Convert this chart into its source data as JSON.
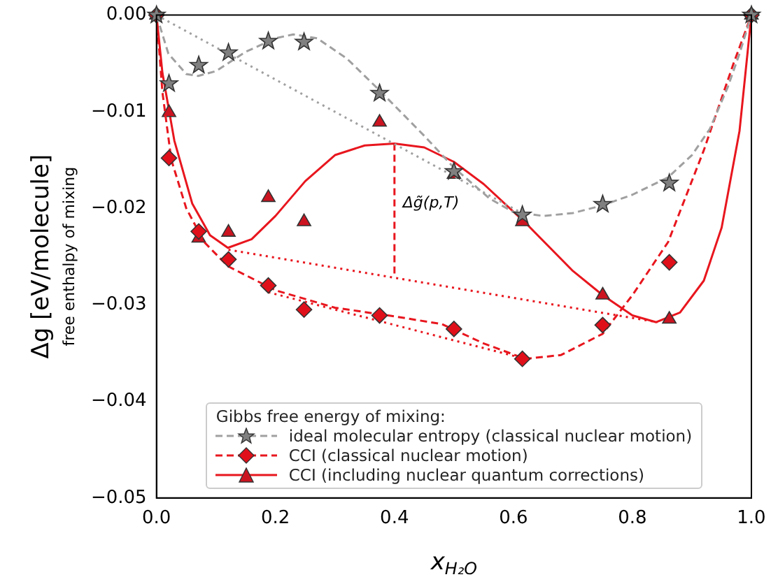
{
  "chart_data": {
    "type": "scatter",
    "xlabel": "x$_{H₂O}$",
    "ylabel": "Δg [eV/molecule]",
    "legend_title": "Gibbs free energy of mixing:",
    "annotations": [
      "free enthalpy of mixing",
      {
        "text": "Δg̃(p,T)",
        "x": 0.4,
        "y": -0.0195
      }
    ],
    "xlim": [
      0,
      1
    ],
    "xticks": [
      {
        "value": 0,
        "label": "0.0"
      },
      0.2,
      0.4,
      0.6,
      0.8,
      {
        "value": 1,
        "label": "1.0"
      }
    ],
    "ylim": [
      -0.05,
      0
    ],
    "yticks": [
      {
        "value": -0.05,
        "label": "−0.05"
      },
      {
        "value": -0.04,
        "label": "−0.04"
      },
      {
        "value": -0.03,
        "label": "−0.03"
      },
      {
        "value": -0.02,
        "label": "−0.02"
      },
      {
        "value": -0.01,
        "label": "−0.01"
      },
      {
        "value": 0,
        "label": "0.00"
      }
    ],
    "grid": false,
    "legend": "bottom",
    "series": [
      {
        "name": "ideal molecular entropy (classical nuclear motion)",
        "type": "scatter",
        "marker": "star",
        "color": "#808080",
        "x": [
          0,
          0.021,
          0.071,
          0.121,
          0.188,
          0.248,
          0.375,
          0.5,
          0.615,
          0.75,
          0.862,
          1
        ],
        "values": [
          0,
          -0.0071,
          -0.0052,
          -0.0039,
          -0.0027,
          -0.0028,
          -0.0081,
          -0.0162,
          -0.0207,
          -0.0196,
          -0.0174,
          0
        ]
      },
      {
        "type": "line",
        "line_style": "dashed",
        "color": "#a0a0a0",
        "x": [
          0,
          0.02,
          0.05,
          0.07,
          0.1,
          0.15,
          0.2,
          0.23,
          0.27,
          0.32,
          0.375,
          0.45,
          0.5,
          0.56,
          0.6,
          0.65,
          0.7,
          0.75,
          0.8,
          0.86,
          0.9,
          0.93,
          0.96,
          0.98,
          1
        ],
        "values": [
          0,
          -0.004,
          -0.0061,
          -0.0063,
          -0.0058,
          -0.0038,
          -0.0024,
          -0.002,
          -0.0024,
          -0.0045,
          -0.0078,
          -0.0125,
          -0.0158,
          -0.019,
          -0.0204,
          -0.0208,
          -0.0205,
          -0.0197,
          -0.0186,
          -0.0168,
          -0.0145,
          -0.0118,
          -0.0075,
          -0.004,
          0
        ]
      },
      {
        "type": "line",
        "line_style": "dotted",
        "color": "#a0a0a0",
        "x": [
          0,
          0.62
        ],
        "values": [
          0,
          -0.0207
        ]
      },
      {
        "name": "CCI (classical nuclear motion)",
        "type": "scatter",
        "marker": "diamond",
        "color": "#e0101a",
        "x": [
          0,
          0.021,
          0.071,
          0.121,
          0.188,
          0.248,
          0.375,
          0.5,
          0.615,
          0.75,
          0.862,
          1
        ],
        "values": [
          0,
          -0.0148,
          -0.0224,
          -0.0253,
          -0.028,
          -0.0305,
          -0.0311,
          -0.0325,
          -0.0356,
          -0.0321,
          -0.0256,
          0
        ]
      },
      {
        "type": "line",
        "line_style": "dashed",
        "color": "#e8161e",
        "x": [
          0,
          0.01,
          0.025,
          0.05,
          0.08,
          0.12,
          0.2,
          0.3,
          0.4,
          0.48,
          0.55,
          0.62,
          0.68,
          0.75,
          0.8,
          0.86,
          0.92,
          0.97,
          1
        ],
        "values": [
          0,
          -0.008,
          -0.015,
          -0.02,
          -0.0235,
          -0.026,
          -0.0285,
          -0.0303,
          -0.0312,
          -0.032,
          -0.034,
          -0.0356,
          -0.0352,
          -0.033,
          -0.029,
          -0.0235,
          -0.014,
          -0.005,
          0
        ]
      },
      {
        "type": "line",
        "line_style": "dotted",
        "color": "#e8161e",
        "x": [
          0.188,
          0.62
        ],
        "values": [
          -0.0287,
          -0.0356
        ]
      },
      {
        "name": "CCI (including nuclear quantum corrections)",
        "type": "scatter",
        "marker": "triangle",
        "color": "#cc1420",
        "x": [
          0,
          0.021,
          0.071,
          0.121,
          0.188,
          0.248,
          0.375,
          0.5,
          0.615,
          0.75,
          0.862,
          1
        ],
        "values": [
          0,
          -0.0101,
          -0.0231,
          -0.0225,
          -0.0189,
          -0.0214,
          -0.0111,
          -0.0165,
          -0.0214,
          -0.029,
          -0.0315,
          0
        ]
      },
      {
        "type": "line",
        "line_style": "solid",
        "color": "#e8161e",
        "x": [
          0,
          0.01,
          0.03,
          0.06,
          0.09,
          0.12,
          0.16,
          0.2,
          0.25,
          0.3,
          0.35,
          0.4,
          0.45,
          0.5,
          0.55,
          0.62,
          0.7,
          0.75,
          0.8,
          0.84,
          0.88,
          0.92,
          0.95,
          0.98,
          1
        ],
        "values": [
          0,
          -0.006,
          -0.013,
          -0.0195,
          -0.0228,
          -0.0241,
          -0.0232,
          -0.0208,
          -0.0172,
          -0.0145,
          -0.0135,
          -0.0133,
          -0.0137,
          -0.0152,
          -0.0175,
          -0.0215,
          -0.0265,
          -0.029,
          -0.0311,
          -0.0318,
          -0.0308,
          -0.0275,
          -0.022,
          -0.012,
          0
        ]
      },
      {
        "type": "line",
        "line_style": "dashed",
        "color": "#e8161e",
        "x": [
          0.4,
          0.4
        ],
        "values": [
          -0.0133,
          -0.0272
        ]
      },
      {
        "type": "line",
        "line_style": "dotted",
        "color": "#e8161e",
        "x": [
          0.121,
          0.842
        ],
        "values": [
          -0.0243,
          -0.0318
        ]
      }
    ]
  }
}
